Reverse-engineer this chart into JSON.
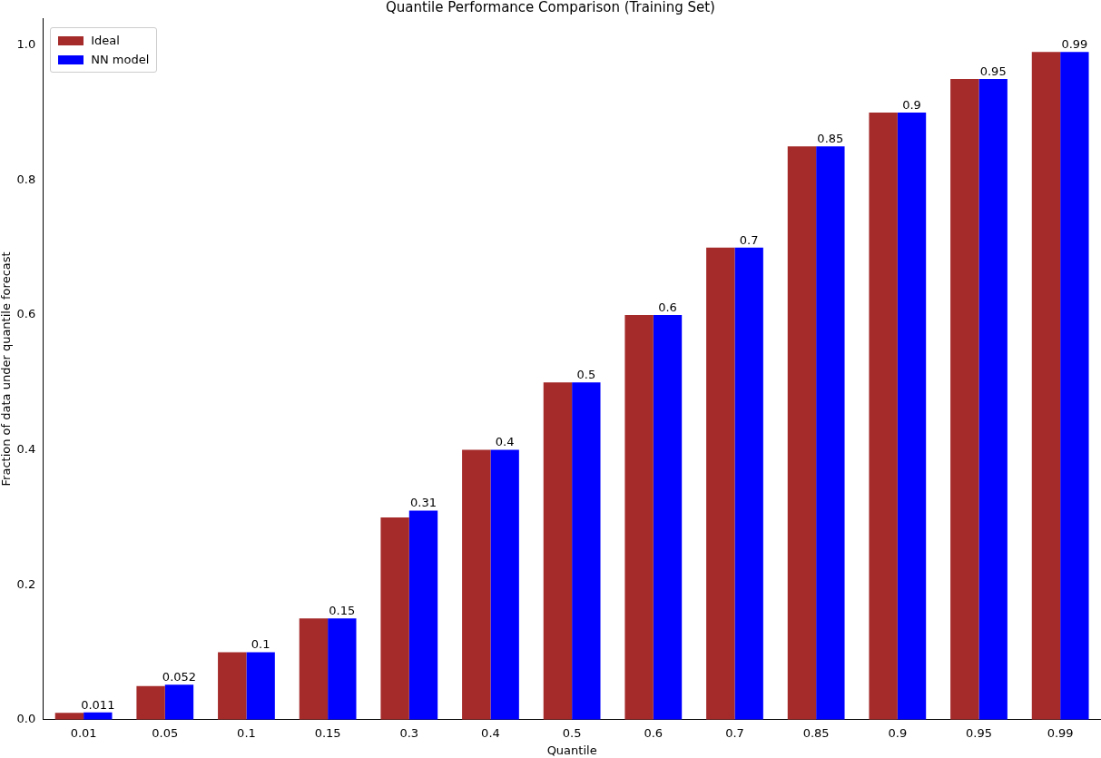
{
  "chart_data": {
    "type": "bar",
    "title": "Quantile Performance Comparison (Training Set)",
    "xlabel": "Quantile",
    "ylabel": "Fraction of data under quantile forecast",
    "categories": [
      "0.01",
      "0.05",
      "0.1",
      "0.15",
      "0.3",
      "0.4",
      "0.5",
      "0.6",
      "0.7",
      "0.85",
      "0.9",
      "0.95",
      "0.99"
    ],
    "series": [
      {
        "name": "Ideal",
        "color": "#a52a2a",
        "values": [
          0.01,
          0.05,
          0.1,
          0.15,
          0.3,
          0.4,
          0.5,
          0.6,
          0.7,
          0.85,
          0.9,
          0.95,
          0.99
        ]
      },
      {
        "name": "NN model",
        "color": "#0000ff",
        "values": [
          0.011,
          0.052,
          0.1,
          0.15,
          0.31,
          0.4,
          0.5,
          0.6,
          0.7,
          0.85,
          0.9,
          0.95,
          0.99
        ],
        "value_labels": [
          "0.011",
          "0.052",
          "0.1",
          "0.15",
          "0.31",
          "0.4",
          "0.5",
          "0.6",
          "0.7",
          "0.85",
          "0.9",
          "0.95",
          "0.99"
        ]
      }
    ],
    "ylim": [
      0,
      1.04
    ],
    "yticks": [
      {
        "value": 0,
        "label": "0.0"
      },
      {
        "value": 0.2,
        "label": "0.2"
      },
      {
        "value": 0.4,
        "label": "0.4"
      },
      {
        "value": 0.6,
        "label": "0.6"
      },
      {
        "value": 0.8,
        "label": "0.8"
      },
      {
        "value": 1,
        "label": "1.0"
      }
    ],
    "legend": "top left",
    "grid": false
  }
}
